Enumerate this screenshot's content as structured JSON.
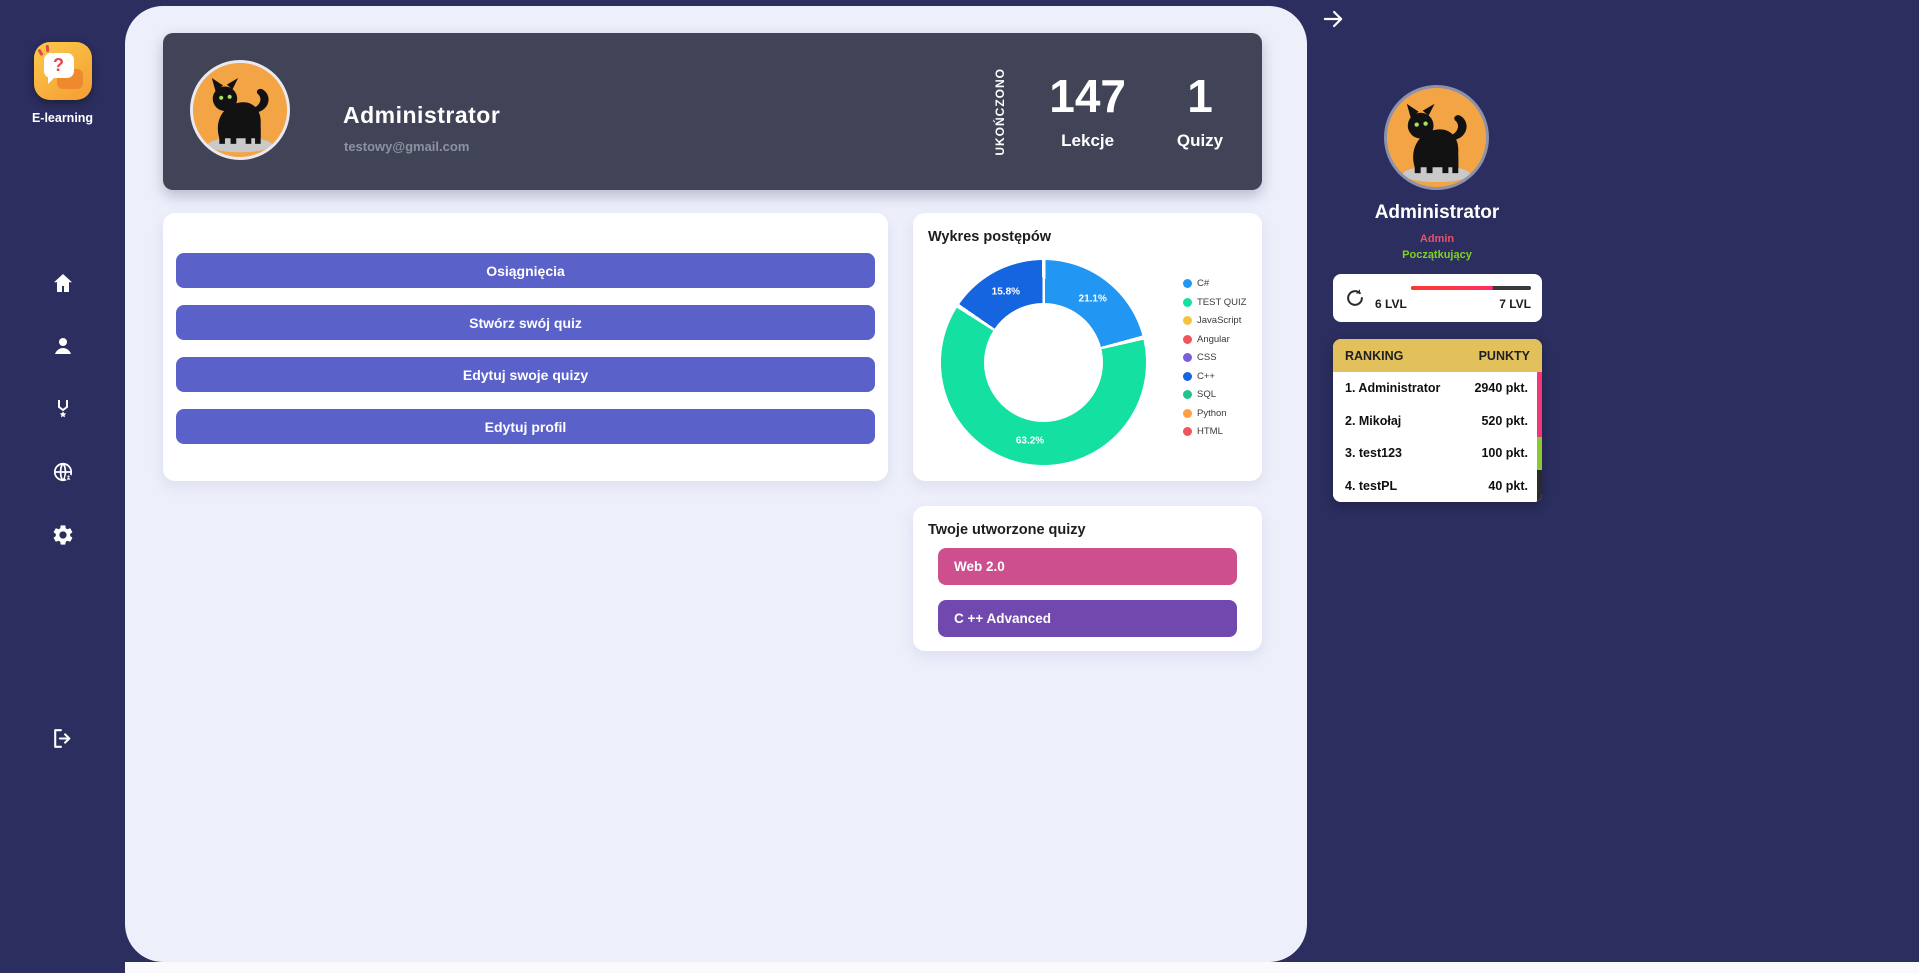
{
  "left_sidebar": {
    "brand_label": "E-learning",
    "nav_items": [
      "home",
      "profile",
      "achievements",
      "explore",
      "settings"
    ],
    "logout": "logout"
  },
  "header": {
    "title": "Administrator",
    "email": "testowy@gmail.com",
    "completed_vertical_label": "UKOŃCZONO",
    "stats": [
      {
        "value": "147",
        "label": "Lekcje"
      },
      {
        "value": "1",
        "label": "Quizy"
      }
    ]
  },
  "actions": {
    "button_color": "#5a61c8",
    "buttons": [
      "Osiągnięcia",
      "Stwórz swój quiz",
      "Edytuj swoje quizy",
      "Edytuj profil"
    ]
  },
  "chart_data": {
    "type": "doughnut",
    "title": "Wykres postępów",
    "unit": "%",
    "legend_position": "right",
    "hole_ratio": 0.58,
    "series": [
      {
        "name": "C#",
        "value": 21.1,
        "color": "#2196f3"
      },
      {
        "name": "TEST QUIZ",
        "value": 63.2,
        "color": "#13e0a1"
      },
      {
        "name": "JavaScript",
        "value": 0,
        "color": "#f5c33b"
      },
      {
        "name": "Angular",
        "value": 0,
        "color": "#f2545b"
      },
      {
        "name": "CSS",
        "value": 0,
        "color": "#7a5dd8"
      },
      {
        "name": "C++",
        "value": 15.8,
        "color": "#1565e0"
      },
      {
        "name": "SQL",
        "value": 0,
        "color": "#21c58b"
      },
      {
        "name": "Python",
        "value": 0,
        "color": "#ff9f40"
      },
      {
        "name": "HTML",
        "value": 0,
        "color": "#f0545c"
      }
    ],
    "visible_slice_labels": [
      "21.1%",
      "63.2%",
      "15.8%"
    ]
  },
  "quizzes_card": {
    "title": "Twoje utworzone quizy",
    "items": [
      {
        "label": "Web 2.0",
        "color": "#cd4f8e"
      },
      {
        "label": "C ++ Advanced",
        "color": "#7148ae"
      }
    ]
  },
  "profile_panel": {
    "name": "Administrator",
    "role": "Admin",
    "role_color": "#e8506e",
    "rank_label": "Początkujący",
    "rank_label_color": "#7ed321",
    "level": {
      "current": "6 LVL",
      "next": "7 LVL",
      "progress_percent": 68
    },
    "ranking": {
      "col_rank": "RANKING",
      "col_points": "PUNKTY",
      "rows": [
        {
          "position": "1.",
          "name": "Administrator",
          "points": "2940 pkt.",
          "indicator": "#f1367c"
        },
        {
          "position": "2.",
          "name": "Mikołaj",
          "points": "520 pkt.",
          "indicator": "#f1367c"
        },
        {
          "position": "3.",
          "name": "test123",
          "points": "100 pkt.",
          "indicator": "#8bc934"
        },
        {
          "position": "4.",
          "name": "testPL",
          "points": "40 pkt.",
          "indicator": "#2b2b2b"
        }
      ]
    }
  }
}
